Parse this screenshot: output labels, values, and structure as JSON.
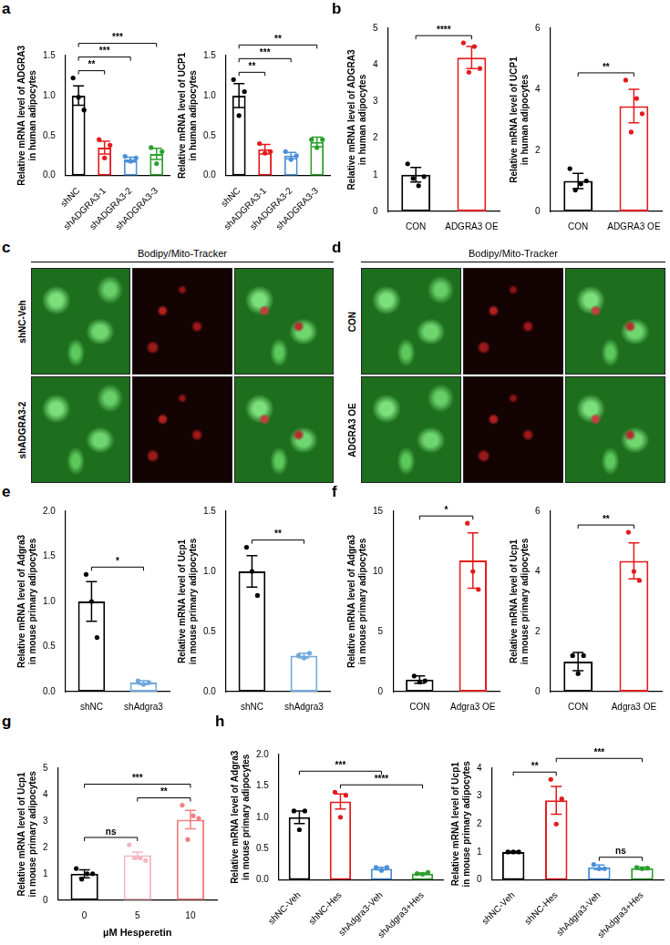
{
  "chart_data": [
    {
      "panel": "a",
      "type": "bar",
      "grid": false,
      "ylabel": [
        "Relative mRNA level of ADGRA3",
        "in human adipocytes"
      ],
      "categories": [
        "shNC",
        "shADGRA3-1",
        "shADGRA3-2",
        "shADGRA3-3"
      ],
      "values": [
        1.0,
        0.35,
        0.2,
        0.27
      ],
      "errors": [
        0.12,
        0.08,
        0.03,
        0.07
      ],
      "points": [
        [
          1.22,
          0.98,
          0.82
        ],
        [
          0.45,
          0.22,
          0.38
        ],
        [
          0.24,
          0.18,
          0.22
        ],
        [
          0.35,
          0.15,
          0.3
        ]
      ],
      "colors": [
        "#000000",
        "#e41a1c",
        "#4a90d9",
        "#2ca02c"
      ],
      "ylim": [
        0,
        1.5
      ],
      "yticks": [
        {
          "value": 0,
          "label": "0.0"
        },
        {
          "value": 0.5,
          "label": "0.5"
        },
        {
          "value": 1,
          "label": "1.0"
        },
        {
          "value": 1.5,
          "label": "1.5"
        }
      ],
      "comparisons": [
        {
          "from": 0,
          "to": 1,
          "label": "**"
        },
        {
          "from": 0,
          "to": 2,
          "label": "***"
        },
        {
          "from": 0,
          "to": 3,
          "label": "***"
        }
      ]
    },
    {
      "panel": "a",
      "type": "bar",
      "grid": false,
      "ylabel": [
        "Relative mRNA level of UCP1",
        "in human adipocytes"
      ],
      "categories": [
        "shNC",
        "shADGRA3-1",
        "shADGRA3-2",
        "shADGRA3-3"
      ],
      "values": [
        1.0,
        0.33,
        0.25,
        0.42
      ],
      "errors": [
        0.15,
        0.06,
        0.04,
        0.06
      ],
      "points": [
        [
          1.2,
          0.75,
          1.05
        ],
        [
          0.4,
          0.28,
          0.3
        ],
        [
          0.3,
          0.2,
          0.25
        ],
        [
          0.45,
          0.35,
          0.45
        ]
      ],
      "colors": [
        "#000000",
        "#e41a1c",
        "#4a90d9",
        "#2ca02c"
      ],
      "ylim": [
        0,
        1.5
      ],
      "yticks": [
        {
          "value": 0,
          "label": "0.0"
        },
        {
          "value": 0.5,
          "label": "0.5"
        },
        {
          "value": 1,
          "label": "1.0"
        },
        {
          "value": 1.5,
          "label": "1.5"
        }
      ],
      "comparisons": [
        {
          "from": 0,
          "to": 1,
          "label": "**"
        },
        {
          "from": 0,
          "to": 2,
          "label": "***"
        },
        {
          "from": 0,
          "to": 3,
          "label": "**"
        }
      ]
    },
    {
      "panel": "b",
      "type": "bar",
      "grid": false,
      "ylabel": [
        "Relative mRNA level of ADGRA3",
        "in human adipocytes"
      ],
      "categories": [
        "CON",
        "ADGRA3 OE"
      ],
      "values": [
        1.0,
        4.2
      ],
      "errors": [
        0.2,
        0.3
      ],
      "points": [
        [
          1.3,
          0.9,
          0.7,
          0.95
        ],
        [
          4.6,
          3.8,
          4.5,
          3.9
        ]
      ],
      "colors": [
        "#000000",
        "#e41a1c"
      ],
      "ylim": [
        0,
        5
      ],
      "yticks": [
        0,
        1,
        2,
        3,
        4,
        5
      ],
      "comparisons": [
        {
          "from": 0,
          "to": 1,
          "label": "****"
        }
      ]
    },
    {
      "panel": "b",
      "type": "bar",
      "grid": false,
      "ylabel": [
        "Relative mRNA level of UCP1",
        "in human adipocytes"
      ],
      "categories": [
        "CON",
        "ADGRA3 OE"
      ],
      "values": [
        1.0,
        3.45
      ],
      "errors": [
        0.25,
        0.55
      ],
      "points": [
        [
          1.4,
          0.7,
          0.9,
          1.0
        ],
        [
          4.3,
          2.6,
          3.7,
          3.2
        ]
      ],
      "colors": [
        "#000000",
        "#e41a1c"
      ],
      "ylim": [
        0,
        6
      ],
      "yticks": [
        0,
        2,
        4,
        6
      ],
      "comparisons": [
        {
          "from": 0,
          "to": 1,
          "label": "**"
        }
      ]
    },
    {
      "panel": "e",
      "type": "bar",
      "grid": false,
      "ylabel": [
        "Relative mRNA level of Adgra3",
        "in mouse primary adipocytes"
      ],
      "categories": [
        "shNC",
        "shAdgra3"
      ],
      "values": [
        1.0,
        0.1
      ],
      "errors": [
        0.22,
        0.02
      ],
      "points": [
        [
          1.3,
          1.0,
          0.6
        ],
        [
          0.12,
          0.08,
          0.1
        ]
      ],
      "colors": [
        "#000000",
        "#6fa8dc"
      ],
      "ylim": [
        0,
        2
      ],
      "yticks": [
        {
          "value": 0,
          "label": "0.0"
        },
        {
          "value": 0.5,
          "label": "0.5"
        },
        {
          "value": 1,
          "label": "1.0"
        },
        {
          "value": 1.5,
          "label": "1.5"
        },
        {
          "value": 2,
          "label": "2.0"
        }
      ],
      "comparisons": [
        {
          "from": 0,
          "to": 1,
          "label": "*"
        }
      ]
    },
    {
      "panel": "e",
      "type": "bar",
      "grid": false,
      "ylabel": [
        "Relative mRNA level of Ucp1",
        "in mouse primary adipocytes"
      ],
      "categories": [
        "shNC",
        "shAdgra3"
      ],
      "values": [
        1.0,
        0.3
      ],
      "errors": [
        0.13,
        0.02
      ],
      "points": [
        [
          1.2,
          1.0,
          0.8
        ],
        [
          0.3,
          0.28,
          0.32
        ]
      ],
      "colors": [
        "#000000",
        "#6fa8dc"
      ],
      "ylim": [
        0,
        1.5
      ],
      "yticks": [
        {
          "value": 0,
          "label": "0.0"
        },
        {
          "value": 0.5,
          "label": "0.5"
        },
        {
          "value": 1,
          "label": "1.0"
        },
        {
          "value": 1.5,
          "label": "1.5"
        }
      ],
      "comparisons": [
        {
          "from": 0,
          "to": 1,
          "label": "**"
        }
      ]
    },
    {
      "panel": "f",
      "type": "bar",
      "grid": false,
      "ylabel": [
        "Relative mRNA level of Adgra3",
        "in mouse primary adipocytes"
      ],
      "categories": [
        "CON",
        "Adgra3 OE"
      ],
      "values": [
        1.0,
        10.9
      ],
      "errors": [
        0.3,
        2.3
      ],
      "points": [
        [
          1.3,
          0.8,
          0.9
        ],
        [
          14,
          10,
          8.5
        ]
      ],
      "colors": [
        "#000000",
        "#e41a1c"
      ],
      "ylim": [
        0,
        15
      ],
      "yticks": [
        0,
        5,
        10,
        15
      ],
      "comparisons": [
        {
          "from": 0,
          "to": 1,
          "label": "*"
        }
      ]
    },
    {
      "panel": "f",
      "type": "bar",
      "grid": false,
      "ylabel": [
        "Relative mRNA level of Ucp1",
        "in mouse primary adipocytes"
      ],
      "categories": [
        "CON",
        "Adgra3 OE"
      ],
      "values": [
        1.0,
        4.35
      ],
      "errors": [
        0.3,
        0.6
      ],
      "points": [
        [
          1.2,
          0.6,
          1.2
        ],
        [
          5.3,
          4.0,
          3.7
        ]
      ],
      "colors": [
        "#000000",
        "#e41a1c"
      ],
      "ylim": [
        0,
        6
      ],
      "yticks": [
        0,
        2,
        4,
        6
      ],
      "comparisons": [
        {
          "from": 0,
          "to": 1,
          "label": "**"
        }
      ]
    },
    {
      "panel": "g",
      "type": "bar",
      "grid": false,
      "ylabel": [
        "Relative mRNA level of Ucp1",
        "in mouse primary adipocytes"
      ],
      "xlabel": "µM Hesperetin",
      "categories": [
        "0",
        "5",
        "10"
      ],
      "values": [
        1.0,
        1.7,
        3.05
      ],
      "errors": [
        0.15,
        0.12,
        0.35
      ],
      "points": [
        [
          1.2,
          0.8,
          1.0,
          1.0
        ],
        [
          2.1,
          1.6,
          1.6,
          1.5
        ],
        [
          3.6,
          2.3,
          3.2,
          3.1
        ]
      ],
      "colors": [
        "#000000",
        "#f7b6c0",
        "#f08080"
      ],
      "ylim": [
        0,
        5
      ],
      "yticks": [
        0,
        1,
        2,
        3,
        4,
        5
      ],
      "comparisons": [
        {
          "from": 0,
          "to": 1,
          "label": "ns"
        },
        {
          "from": 1,
          "to": 2,
          "label": "**"
        },
        {
          "from": 0,
          "to": 2,
          "label": "***"
        }
      ]
    },
    {
      "panel": "h",
      "type": "bar",
      "grid": false,
      "ylabel": [
        "Relative mRNA level of Adgra3",
        "in mouse primary adipocytes"
      ],
      "categories": [
        "shNC-Veh",
        "shNC-Hes",
        "shAdgra3-Veh",
        "shAdgra3+Hes"
      ],
      "values": [
        1.0,
        1.25,
        0.18,
        0.1
      ],
      "errors": [
        0.1,
        0.12,
        0.02,
        0.01
      ],
      "points": [
        [
          1.1,
          0.8,
          1.1
        ],
        [
          1.4,
          1.0,
          1.35
        ],
        [
          0.2,
          0.15,
          0.2
        ],
        [
          0.1,
          0.09,
          0.12
        ]
      ],
      "colors": [
        "#000000",
        "#e41a1c",
        "#4a90d9",
        "#2ca02c"
      ],
      "ylim": [
        0,
        2
      ],
      "yticks": [
        {
          "value": 0,
          "label": "0.0"
        },
        {
          "value": 0.5,
          "label": "0.5"
        },
        {
          "value": 1,
          "label": "1.0"
        },
        {
          "value": 1.5,
          "label": "1.5"
        },
        {
          "value": 2,
          "label": "2.0"
        }
      ],
      "comparisons": [
        {
          "from": 1,
          "to": 3,
          "label": "****"
        },
        {
          "from": 0,
          "to": 2,
          "label": "***"
        }
      ]
    },
    {
      "panel": "h",
      "type": "bar",
      "grid": false,
      "ylabel": [
        "Relative mRNA level of Ucp1",
        "in mouse primary adipocytes"
      ],
      "categories": [
        "shNC-Veh",
        "shNC-Hes",
        "shAdgra3-Veh",
        "shAdgra3+Hes"
      ],
      "values": [
        1.0,
        2.85,
        0.45,
        0.42
      ],
      "errors": [
        0.02,
        0.5,
        0.08,
        0.04
      ],
      "points": [
        [
          1.0,
          1.0,
          1.0
        ],
        [
          3.6,
          2.0,
          2.9
        ],
        [
          0.55,
          0.4,
          0.4
        ],
        [
          0.45,
          0.4,
          0.42
        ]
      ],
      "colors": [
        "#000000",
        "#e41a1c",
        "#4a90d9",
        "#2ca02c"
      ],
      "ylim": [
        0,
        4
      ],
      "yticks": [
        0,
        1,
        2,
        3,
        4
      ],
      "comparisons": [
        {
          "from": 0,
          "to": 1,
          "label": "**"
        },
        {
          "from": 2,
          "to": 3,
          "label": "ns"
        },
        {
          "from": 1,
          "to": 3,
          "label": "***"
        }
      ]
    }
  ],
  "images": [
    {
      "panel": "c",
      "title": "Bodipy/Mito-Tracker",
      "rows": [
        "shNC-Veh",
        "shADGRA3-2"
      ]
    },
    {
      "panel": "d",
      "title": "Bodipy/Mito-Tracker",
      "rows": [
        "CON",
        "ADGRA3 OE"
      ]
    }
  ]
}
